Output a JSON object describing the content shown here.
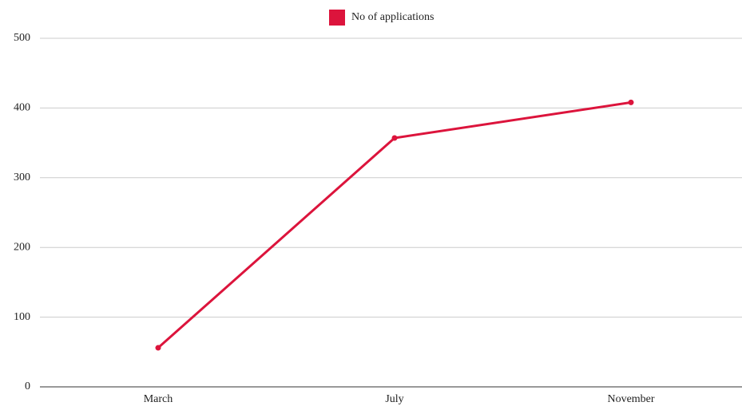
{
  "chart_data": {
    "type": "line",
    "categories": [
      "March",
      "July",
      "November"
    ],
    "series": [
      {
        "name": "No of applications",
        "color": "#dc143c",
        "values": [
          56,
          357,
          408
        ]
      }
    ],
    "ylim": [
      0,
      500
    ],
    "yticks": [
      0,
      100,
      200,
      300,
      400,
      500
    ],
    "grid": true,
    "legend": "top"
  }
}
